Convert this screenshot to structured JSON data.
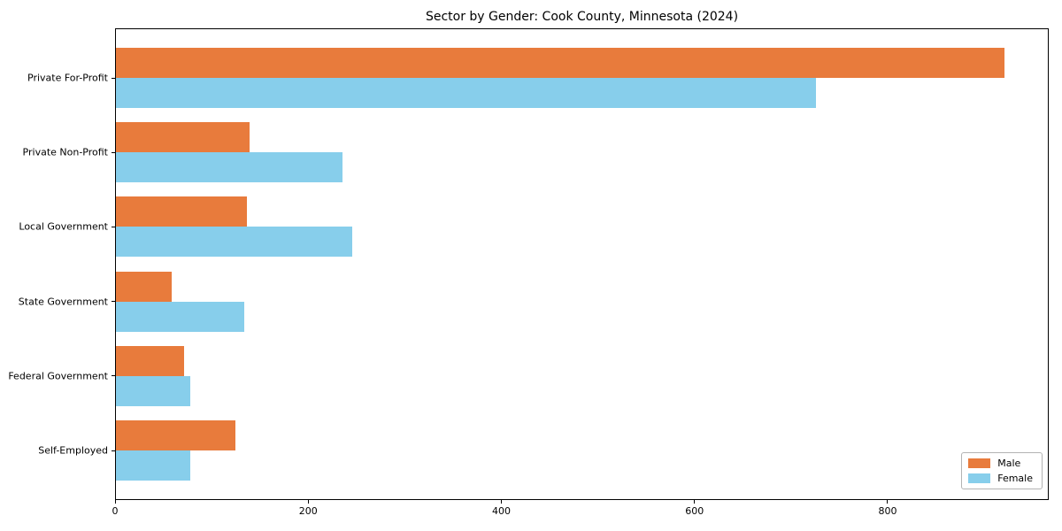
{
  "chart_data": {
    "type": "bar",
    "orientation": "horizontal",
    "title": "Sector by Gender: Cook County, Minnesota (2024)",
    "categories": [
      "Private For-Profit",
      "Private Non-Profit",
      "Local Government",
      "State Government",
      "Federal Government",
      "Self-Employed"
    ],
    "series": [
      {
        "name": "Male",
        "color": "#E87B3C",
        "values": [
          920,
          138,
          136,
          58,
          71,
          124
        ]
      },
      {
        "name": "Female",
        "color": "#87CEEB",
        "values": [
          725,
          235,
          245,
          133,
          77,
          77
        ]
      }
    ],
    "xlabel": "",
    "ylabel": "",
    "xlim": [
      0,
      965
    ],
    "xticks": [
      0,
      200,
      400,
      600,
      800
    ],
    "grid": false,
    "legend_position": "lower right",
    "category_order": "top-to-bottom"
  }
}
